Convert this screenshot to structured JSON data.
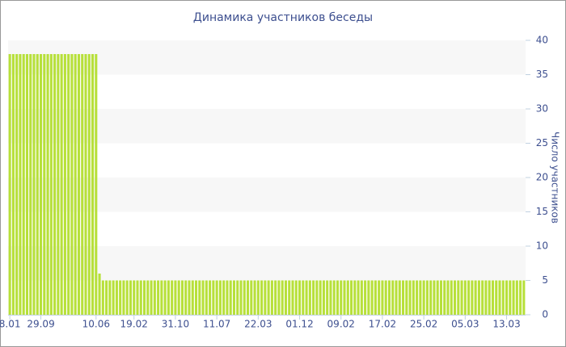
{
  "chart_data": {
    "type": "bar",
    "title": "Динамика участников беседы",
    "y_label": "Число участников",
    "color": "#b7e03a",
    "categories": [
      "8.01",
      null,
      null,
      null,
      null,
      null,
      null,
      null,
      null,
      "29.09",
      null,
      null,
      null,
      null,
      null,
      null,
      null,
      null,
      null,
      null,
      null,
      null,
      null,
      null,
      null,
      "10.06",
      null,
      null,
      null,
      null,
      null,
      null,
      null,
      null,
      null,
      null,
      "19.02",
      null,
      null,
      null,
      null,
      null,
      null,
      null,
      null,
      null,
      null,
      null,
      "31.10",
      null,
      null,
      null,
      null,
      null,
      null,
      null,
      null,
      null,
      null,
      null,
      "11.07",
      null,
      null,
      null,
      null,
      null,
      null,
      null,
      null,
      null,
      null,
      null,
      "22.03",
      null,
      null,
      null,
      null,
      null,
      null,
      null,
      null,
      null,
      null,
      null,
      "01.12",
      null,
      null,
      null,
      null,
      null,
      null,
      null,
      null,
      null,
      null,
      null,
      "09.02",
      null,
      null,
      null,
      null,
      null,
      null,
      null,
      null,
      null,
      null,
      null,
      "17.02",
      null,
      null,
      null,
      null,
      null,
      null,
      null,
      null,
      null,
      null,
      null,
      "25.02",
      null,
      null,
      null,
      null,
      null,
      null,
      null,
      null,
      null,
      null,
      null,
      "05.03",
      null,
      null,
      null,
      null,
      null,
      null,
      null,
      null,
      null,
      null,
      null,
      "13.03",
      null,
      null,
      null,
      null,
      null
    ],
    "values": [
      38,
      38,
      38,
      38,
      38,
      38,
      38,
      38,
      38,
      38,
      38,
      38,
      38,
      38,
      38,
      38,
      38,
      38,
      38,
      38,
      38,
      38,
      38,
      38,
      38,
      38,
      6,
      5,
      5,
      5,
      5,
      5,
      5,
      5,
      5,
      5,
      5,
      5,
      5,
      5,
      5,
      5,
      5,
      5,
      5,
      5,
      5,
      5,
      5,
      5,
      5,
      5,
      5,
      5,
      5,
      5,
      5,
      5,
      5,
      5,
      5,
      5,
      5,
      5,
      5,
      5,
      5,
      5,
      5,
      5,
      5,
      5,
      5,
      5,
      5,
      5,
      5,
      5,
      5,
      5,
      5,
      5,
      5,
      5,
      5,
      5,
      5,
      5,
      5,
      5,
      5,
      5,
      5,
      5,
      5,
      5,
      5,
      5,
      5,
      5,
      5,
      5,
      5,
      5,
      5,
      5,
      5,
      5,
      5,
      5,
      5,
      5,
      5,
      5,
      5,
      5,
      5,
      5,
      5,
      5,
      5,
      5,
      5,
      5,
      5,
      5,
      5,
      5,
      5,
      5,
      5,
      5,
      5,
      5,
      5,
      5,
      5,
      5,
      5,
      5,
      5,
      5,
      5,
      5,
      5,
      5,
      5,
      5,
      5,
      5
    ],
    "ylim": [
      0,
      40
    ],
    "yticks": [
      0,
      5,
      10,
      15,
      20,
      25,
      30,
      35,
      40
    ],
    "grid": true
  }
}
